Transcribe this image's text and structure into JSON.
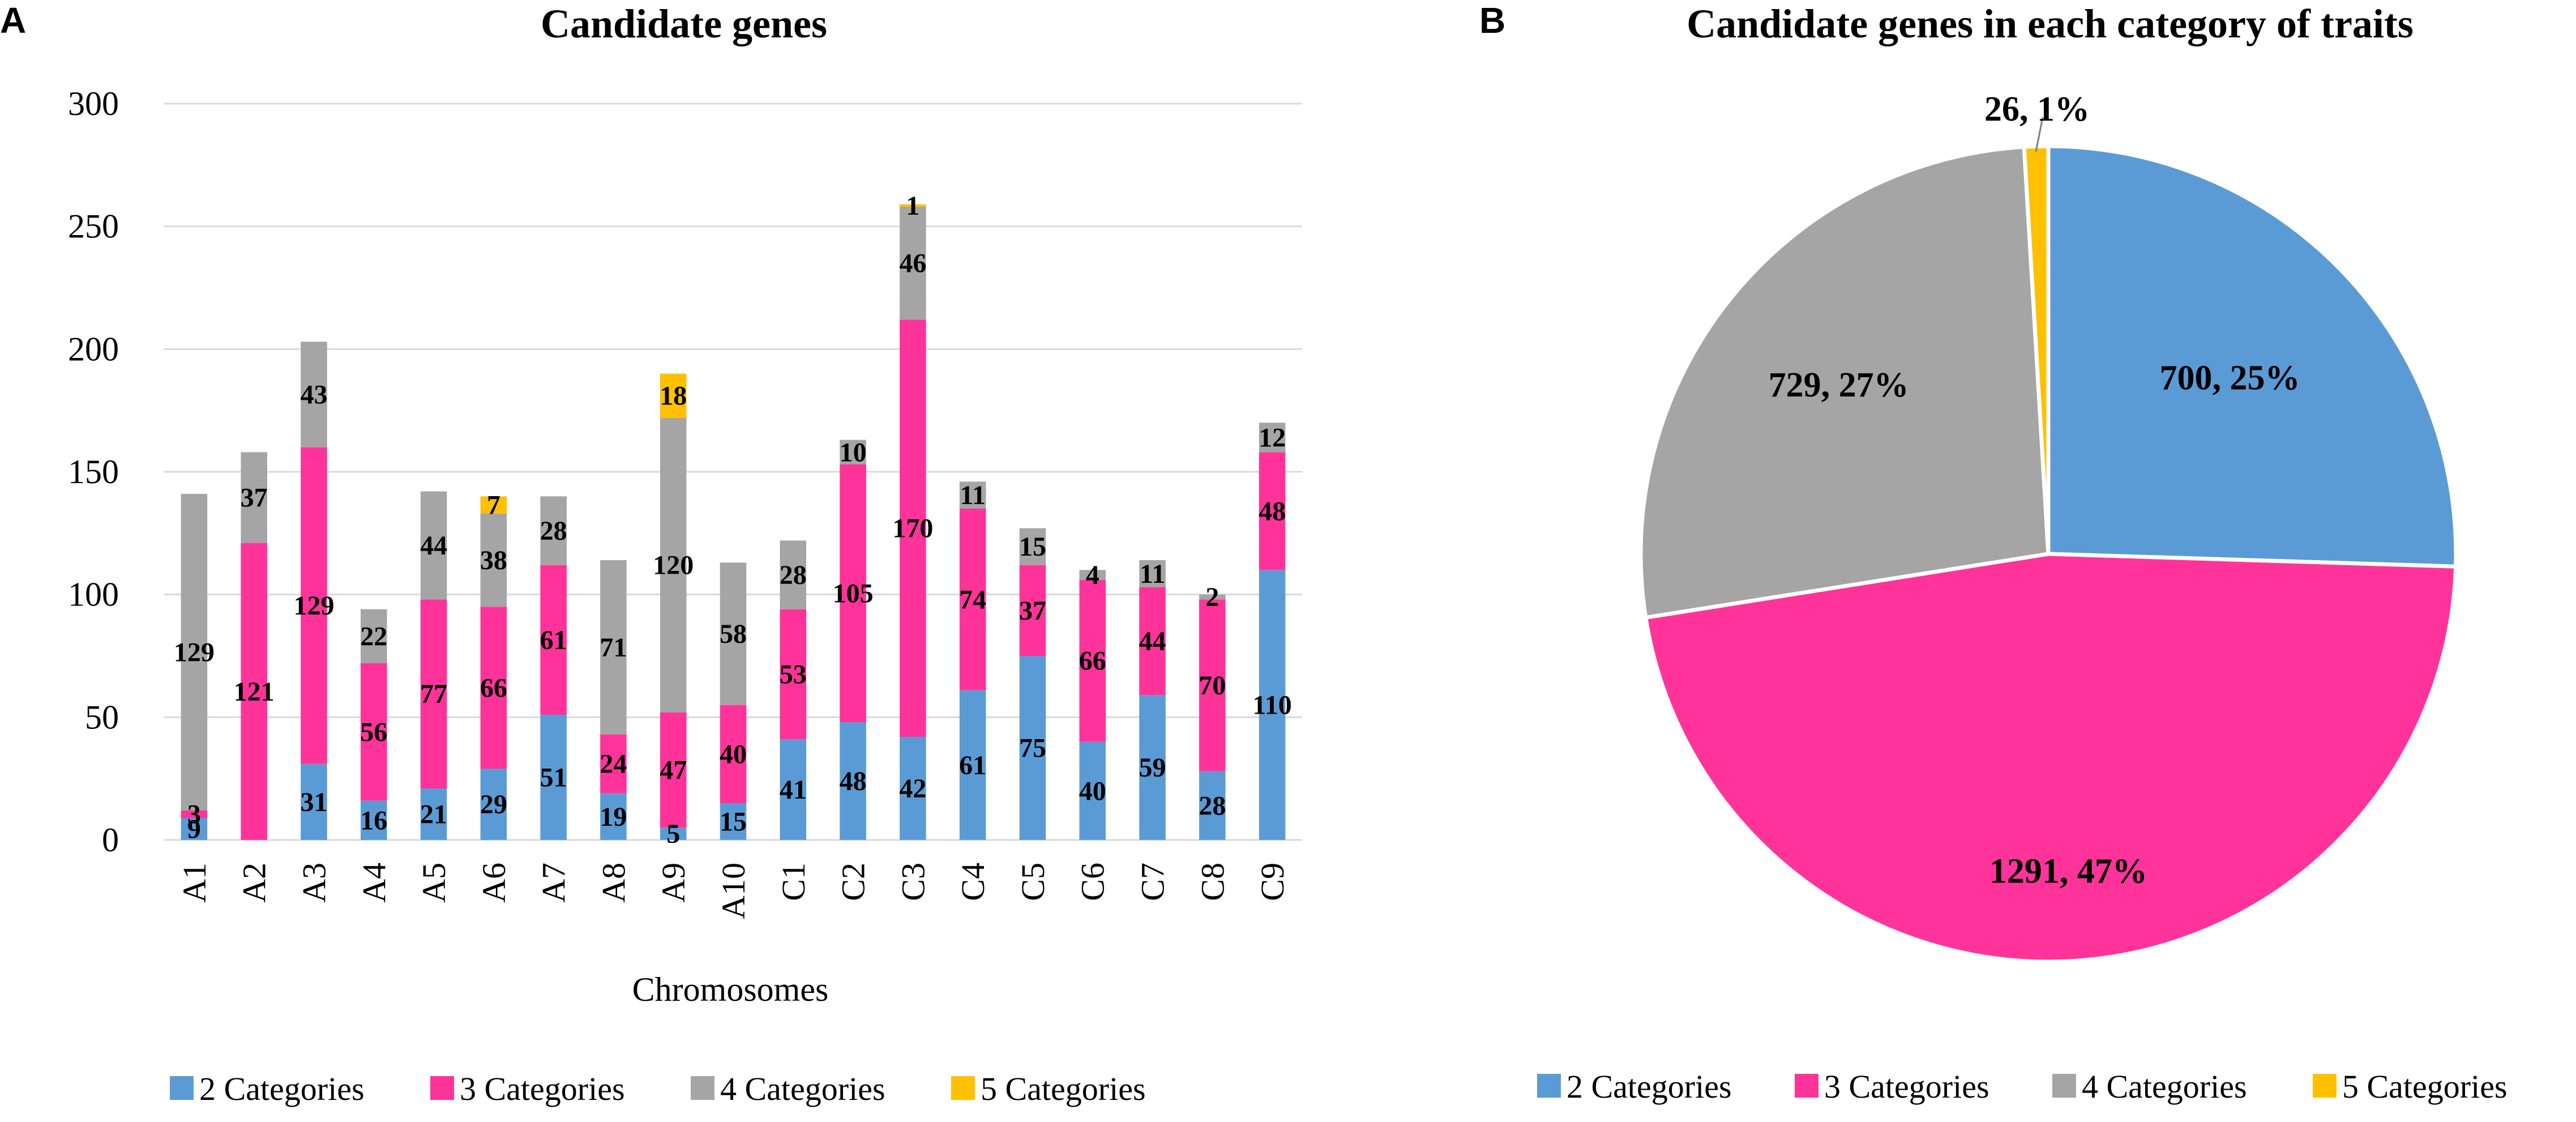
{
  "panels": {
    "a": "A",
    "b": "B"
  },
  "chart_data": [
    {
      "type": "bar",
      "stacked": true,
      "title": "Candidate genes",
      "xlabel": "Chromosomes",
      "ylabel": "",
      "ylim": [
        0,
        300
      ],
      "yticks": [
        "0",
        "50",
        "100",
        "150",
        "200",
        "250",
        "300"
      ],
      "grid": true,
      "legend_position": "bottom",
      "categories": [
        "A1",
        "A2",
        "A3",
        "A4",
        "A5",
        "A6",
        "A7",
        "A8",
        "A9",
        "A10",
        "C1",
        "C2",
        "C3",
        "C4",
        "C5",
        "C6",
        "C7",
        "C8",
        "C9"
      ],
      "series": [
        {
          "name": "2 Categories",
          "color": "#5b9bd5",
          "values": [
            9,
            0,
            31,
            16,
            21,
            29,
            51,
            19,
            5,
            15,
            41,
            48,
            42,
            61,
            75,
            40,
            59,
            28,
            110
          ]
        },
        {
          "name": "3 Categories",
          "color": "#ff3399",
          "values": [
            3,
            121,
            129,
            56,
            77,
            66,
            61,
            24,
            47,
            40,
            53,
            105,
            170,
            74,
            37,
            66,
            44,
            70,
            48
          ]
        },
        {
          "name": "4 Categories",
          "color": "#a5a5a5",
          "values": [
            129,
            37,
            43,
            22,
            44,
            38,
            28,
            71,
            120,
            58,
            28,
            10,
            46,
            11,
            15,
            4,
            11,
            2,
            12
          ]
        },
        {
          "name": "5 Categories",
          "color": "#ffc000",
          "values": [
            0,
            0,
            0,
            0,
            0,
            7,
            0,
            0,
            18,
            0,
            0,
            0,
            1,
            0,
            0,
            0,
            0,
            0,
            0
          ]
        }
      ]
    },
    {
      "type": "pie",
      "title": "Candidate genes in each category of traits",
      "legend_position": "bottom",
      "slices": [
        {
          "name": "2 Categories",
          "value": 700,
          "label": "700, 25%",
          "color": "#5b9bd5"
        },
        {
          "name": "3 Categories",
          "value": 1291,
          "label": "1291, 47%",
          "color": "#ff3399"
        },
        {
          "name": "4 Categories",
          "value": 729,
          "label": "729, 27%",
          "color": "#a5a5a5"
        },
        {
          "name": "5 Categories",
          "value": 26,
          "label": "26, 1%",
          "color": "#ffc000"
        }
      ]
    }
  ]
}
